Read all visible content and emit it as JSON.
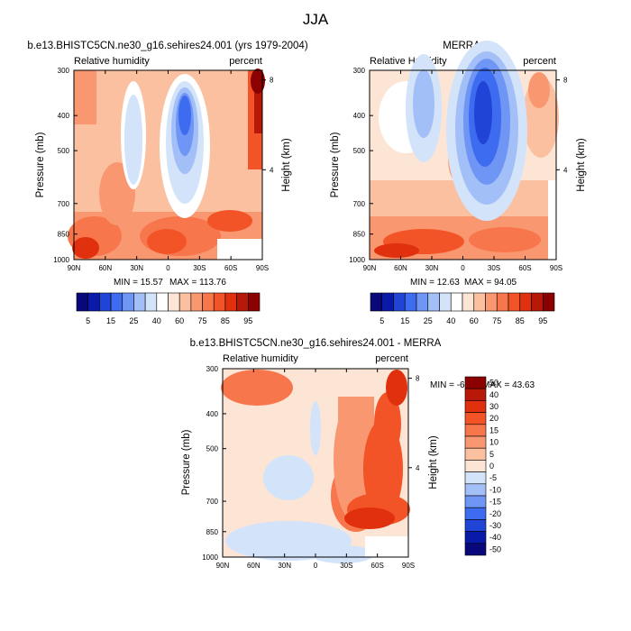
{
  "figure": {
    "title": "JJA"
  },
  "chart_data": [
    {
      "type": "heatmap",
      "title": "b.e13.BHISTC5CN.ne30_g16.sehires24.001 (yrs 1979-2004)",
      "left_label": "Relative humidity",
      "right_label": "percent",
      "xlabel": "",
      "ylabel": "Pressure (mb)",
      "ylabel_right": "Height (km)",
      "x_ticks": [
        "90N",
        "60N",
        "30N",
        "0",
        "30S",
        "60S",
        "90S"
      ],
      "y_ticks": [
        "300",
        "400",
        "500",
        "700",
        "850",
        "1000"
      ],
      "y_ticks_right": [
        "8",
        "4"
      ],
      "xlim": [
        90,
        -90
      ],
      "ylim": [
        1000,
        300
      ],
      "min_label": "MIN = 15.57",
      "max_label": "MAX = 113.76",
      "colorbar_labels": [
        "5",
        "15",
        "25",
        "40",
        "60",
        "75",
        "85",
        "95"
      ]
    },
    {
      "type": "heatmap",
      "title": "MERRA",
      "left_label": "Relative Humidity",
      "right_label": "percent",
      "xlabel": "",
      "ylabel": "Pressure (mb)",
      "ylabel_right": "Height (km)",
      "x_ticks": [
        "90N",
        "60N",
        "30N",
        "0",
        "30S",
        "60S",
        "90S"
      ],
      "y_ticks": [
        "300",
        "400",
        "500",
        "700",
        "850",
        "1000"
      ],
      "y_ticks_right": [
        "8",
        "4"
      ],
      "xlim": [
        90,
        -90
      ],
      "ylim": [
        1000,
        300
      ],
      "min_label": "MIN = 12.63",
      "max_label": "MAX = 94.05",
      "colorbar_labels": [
        "5",
        "15",
        "25",
        "40",
        "60",
        "75",
        "85",
        "95"
      ]
    },
    {
      "type": "heatmap",
      "title": "b.e13.BHISTC5CN.ne30_g16.sehires24.001 - MERRA",
      "left_label": "Relative humidity",
      "right_label": "percent",
      "xlabel": "",
      "ylabel": "Pressure (mb)",
      "ylabel_right": "Height (km)",
      "x_ticks": [
        "90N",
        "60N",
        "30N",
        "0",
        "30S",
        "60S",
        "90S"
      ],
      "y_ticks": [
        "300",
        "400",
        "500",
        "700",
        "850",
        "1000"
      ],
      "y_ticks_right": [
        "8",
        "4"
      ],
      "xlim": [
        90,
        -90
      ],
      "ylim": [
        1000,
        300
      ],
      "min_label": "MIN =  -6.92",
      "max_label": "MAX =  43.63",
      "colorbar_labels": [
        "50",
        "40",
        "30",
        "20",
        "15",
        "10",
        "5",
        "0",
        "-5",
        "-10",
        "-15",
        "-20",
        "-30",
        "-40",
        "-50"
      ]
    }
  ],
  "colors": {
    "rh_colorbar": [
      "#08087a",
      "#0a1aa8",
      "#1f44d6",
      "#3d6cf0",
      "#6f96f5",
      "#a3bff7",
      "#d3e3fa",
      "#ffffff",
      "#fde5d6",
      "#fbc0a0",
      "#f99870",
      "#f7764c",
      "#f25428",
      "#e0300e",
      "#b81807",
      "#8b0000"
    ],
    "diff_colorbar": [
      "#8b0000",
      "#b81807",
      "#e0300e",
      "#f25428",
      "#f7764c",
      "#f99870",
      "#fbc0a0",
      "#fde5d6",
      "#d3e3fa",
      "#a3bff7",
      "#6f96f5",
      "#3d6cf0",
      "#1f44d6",
      "#0a1aa8",
      "#08087a"
    ],
    "mask": "#ffffff"
  }
}
